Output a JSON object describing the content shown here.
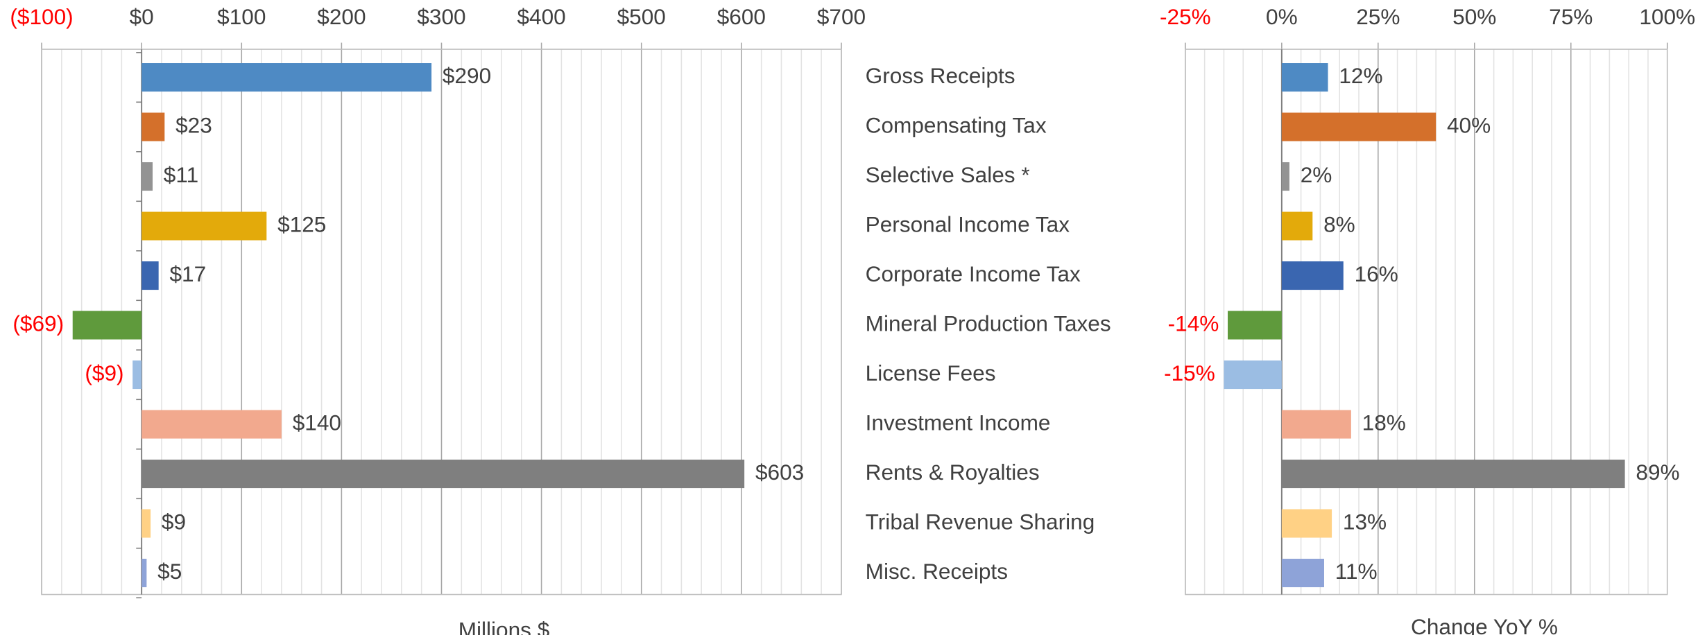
{
  "chart_data": [
    {
      "type": "bar",
      "orientation": "horizontal",
      "x_label": "Millions $",
      "categories": [
        "Gross Receipts",
        "Compensating Tax",
        "Selective Sales *",
        "Personal Income Tax",
        "Corporate Income Tax",
        "Mineral Production Taxes",
        "License Fees",
        "Investment Income",
        "Rents & Royalties",
        "Tribal Revenue Sharing",
        "Misc. Receipts"
      ],
      "values": [
        290,
        23,
        11,
        125,
        17,
        -69,
        -9,
        140,
        603,
        9,
        5
      ],
      "value_labels": [
        "$290",
        "$23",
        "$11",
        "$125",
        "$17",
        "($69)",
        "($9)",
        "$140",
        "$603",
        "$9",
        "$5"
      ],
      "colors": [
        "#4e8ac4",
        "#d4702b",
        "#939393",
        "#e3aa0b",
        "#3a66b0",
        "#5f9a3c",
        "#9bbde3",
        "#f2a98e",
        "#7f7f7f",
        "#ffd185",
        "#8ea3d8"
      ],
      "negative_color": "#ff0000",
      "xlim": [
        -100,
        700
      ],
      "xticks": [
        {
          "value": -100,
          "label": "($100)"
        },
        {
          "value": 0,
          "label": "$0"
        },
        {
          "value": 100,
          "label": "$100"
        },
        {
          "value": 200,
          "label": "$200"
        },
        {
          "value": 300,
          "label": "$300"
        },
        {
          "value": 400,
          "label": "$400"
        },
        {
          "value": 500,
          "label": "$500"
        },
        {
          "value": 600,
          "label": "$600"
        },
        {
          "value": 700,
          "label": "$700"
        }
      ],
      "grid": true
    },
    {
      "type": "bar",
      "orientation": "horizontal",
      "x_label": "Change YoY %",
      "values": [
        12,
        40,
        2,
        8,
        16,
        -14,
        -15,
        18,
        89,
        13,
        11
      ],
      "value_labels": [
        "12%",
        "40%",
        "2%",
        "8%",
        "16%",
        "-14%",
        "-15%",
        "18%",
        "89%",
        "13%",
        "11%"
      ],
      "colors": [
        "#4e8ac4",
        "#d4702b",
        "#939393",
        "#e3aa0b",
        "#3a66b0",
        "#5f9a3c",
        "#9bbde3",
        "#f2a98e",
        "#7f7f7f",
        "#ffd185",
        "#8ea3d8"
      ],
      "negative_color": "#ff0000",
      "xlim": [
        -25,
        100
      ],
      "xticks": [
        {
          "value": -25,
          "label": "-25%"
        },
        {
          "value": 0,
          "label": "0%"
        },
        {
          "value": 25,
          "label": "25%"
        },
        {
          "value": 50,
          "label": "50%"
        },
        {
          "value": 75,
          "label": "75%"
        },
        {
          "value": 100,
          "label": "100%"
        }
      ],
      "grid": true
    }
  ]
}
